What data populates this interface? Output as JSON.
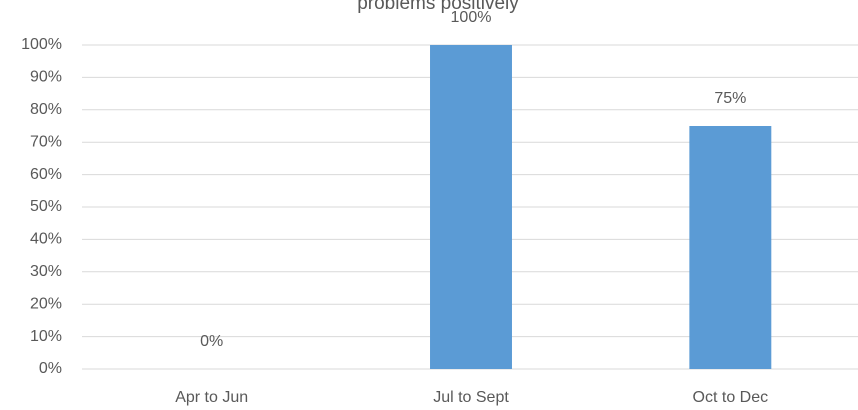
{
  "chart_data": {
    "type": "bar",
    "title": "problems positively",
    "categories": [
      "Apr to Jun",
      "Jul to Sept",
      "Oct to Dec"
    ],
    "values": [
      0,
      100,
      75
    ],
    "value_labels": [
      "0%",
      "100%",
      "75%"
    ],
    "color": "#5b9bd5",
    "ylim": [
      0,
      100
    ],
    "yticks": [
      {
        "value": 0,
        "label": "0%"
      },
      {
        "value": 10,
        "label": "10%"
      },
      {
        "value": 20,
        "label": "20%"
      },
      {
        "value": 30,
        "label": "30%"
      },
      {
        "value": 40,
        "label": "40%"
      },
      {
        "value": 50,
        "label": "50%"
      },
      {
        "value": 60,
        "label": "60%"
      },
      {
        "value": 70,
        "label": "70%"
      },
      {
        "value": 80,
        "label": "80%"
      },
      {
        "value": 90,
        "label": "90%"
      },
      {
        "value": 100,
        "label": "100%"
      }
    ],
    "grid": true
  }
}
